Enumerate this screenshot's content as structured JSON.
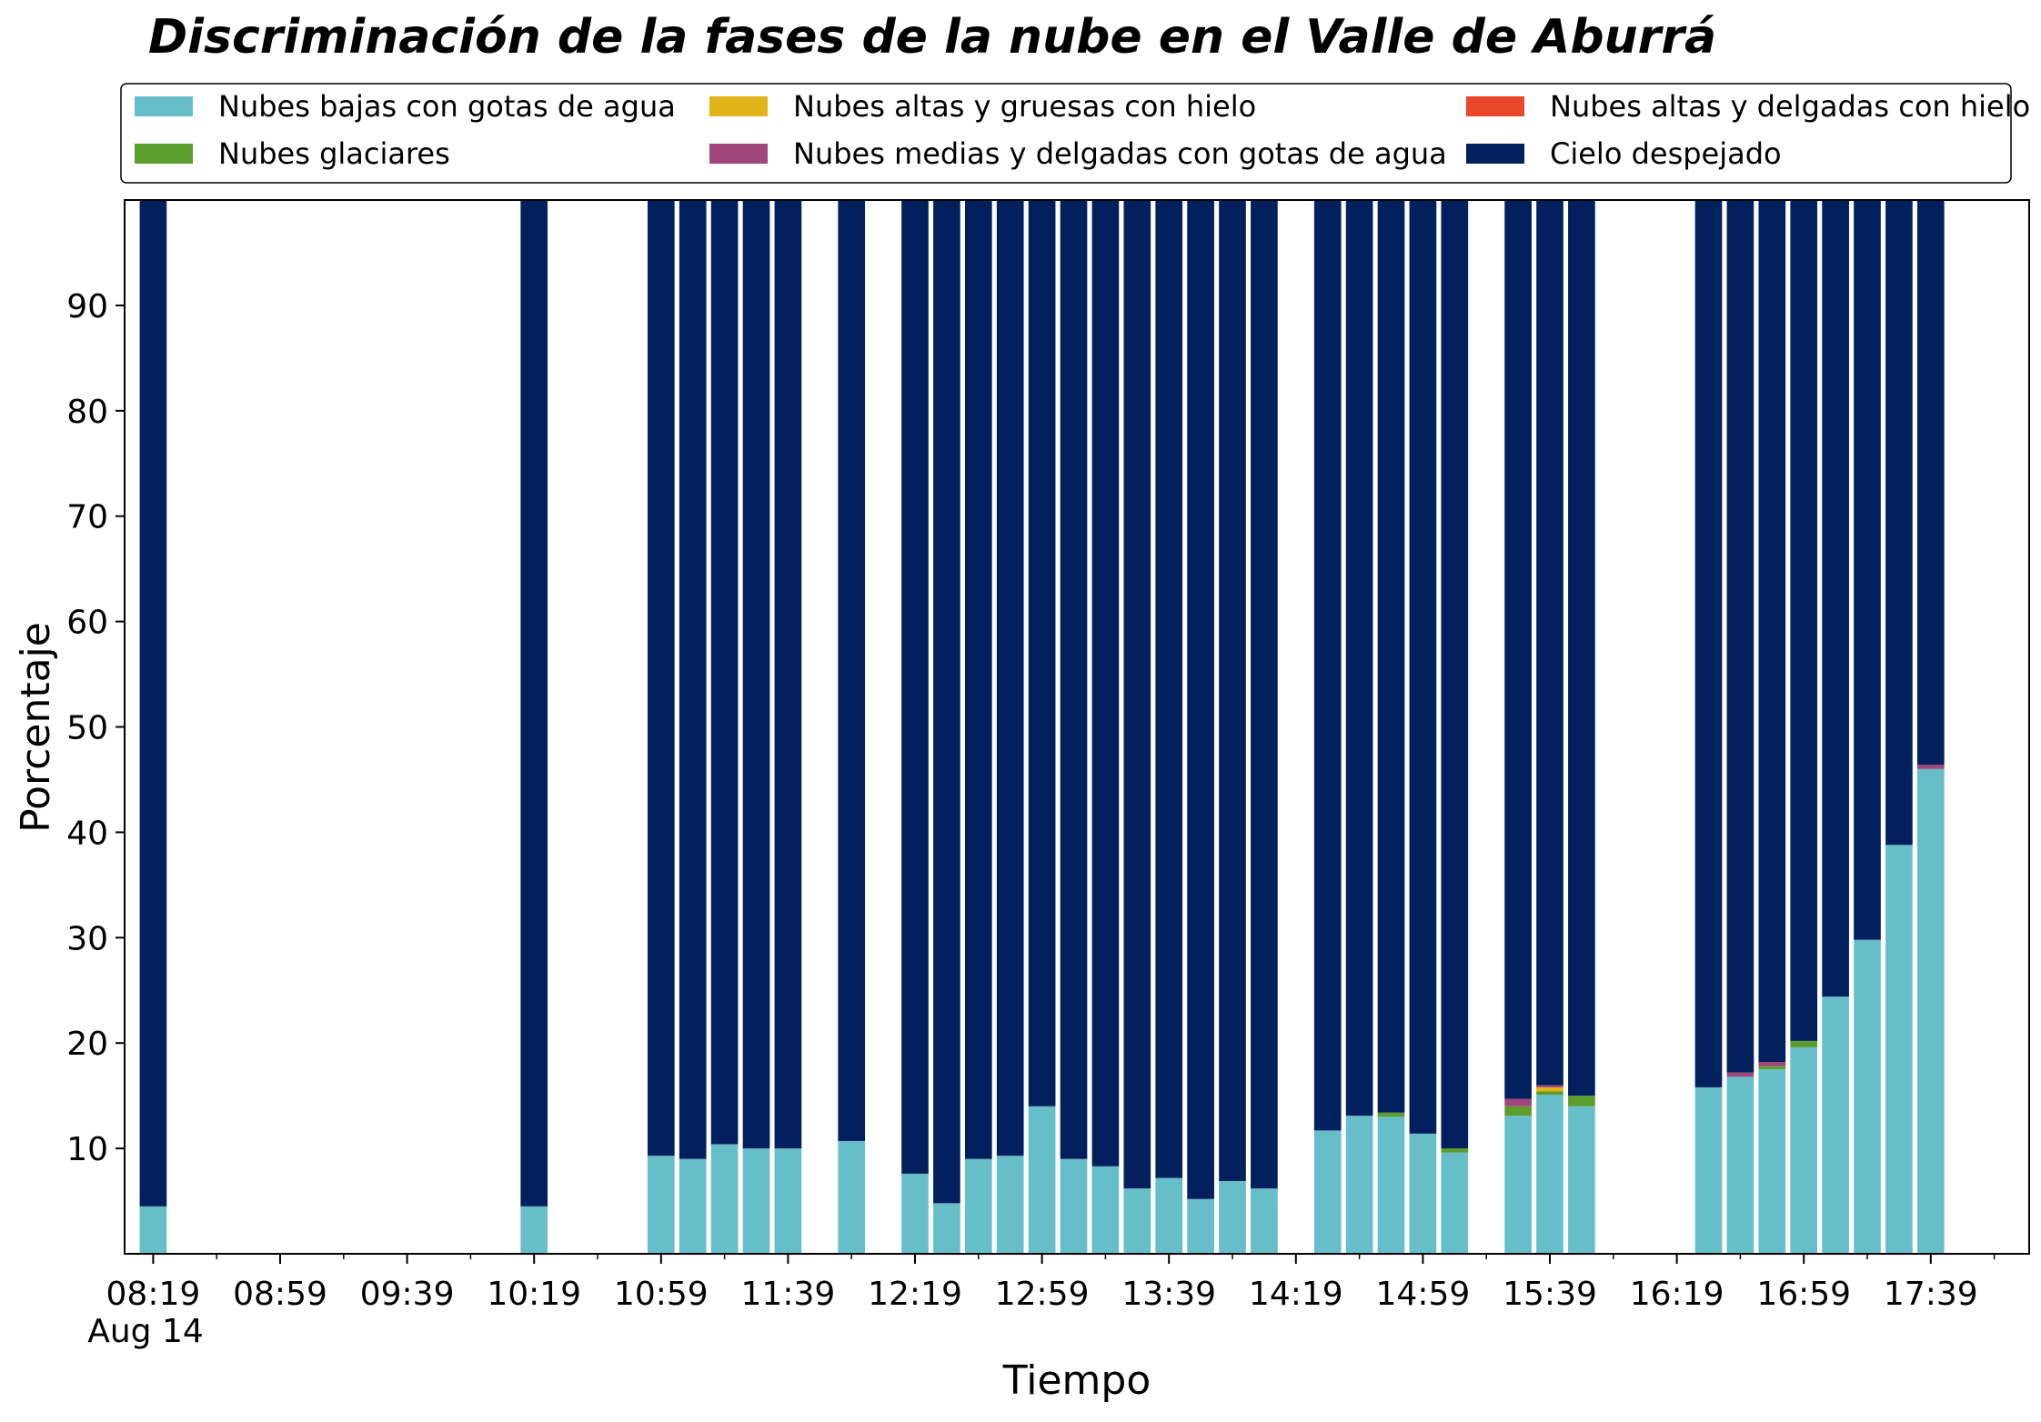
{
  "chart_data": {
    "type": "bar",
    "stacked": true,
    "title": "Discriminación de la fases de la nube en el Valle de Aburrá",
    "xlabel": "Tiempo",
    "ylabel": "Porcentaje",
    "ylim": [
      0,
      100
    ],
    "yticks": [
      10,
      20,
      30,
      40,
      50,
      60,
      70,
      80,
      90
    ],
    "xlim": [
      "08:10",
      "18:10"
    ],
    "x_tick_labels": [
      "08:19",
      "08:59",
      "09:39",
      "10:19",
      "10:59",
      "11:39",
      "12:19",
      "12:59",
      "13:39",
      "14:19",
      "14:59",
      "15:39",
      "16:19",
      "16:59",
      "17:39"
    ],
    "x_date_label": "Aug 14",
    "x_minor_step_minutes": 20,
    "grid": false,
    "legend_position": "top",
    "bar_width_minutes": 8.5,
    "x": [
      "08:19",
      "10:19",
      "10:59",
      "11:09",
      "11:19",
      "11:29",
      "11:39",
      "11:59",
      "12:19",
      "12:29",
      "12:39",
      "12:49",
      "12:59",
      "13:09",
      "13:19",
      "13:29",
      "13:39",
      "13:49",
      "13:59",
      "14:09",
      "14:29",
      "14:39",
      "14:49",
      "14:59",
      "15:09",
      "15:29",
      "15:39",
      "15:49",
      "16:29",
      "16:39",
      "16:49",
      "16:59",
      "17:09",
      "17:19",
      "17:29",
      "17:39"
    ],
    "series": [
      {
        "name": "Nubes bajas con gotas de agua",
        "color": "#66bec9",
        "values": [
          4.5,
          4.5,
          9.3,
          9.0,
          10.4,
          10.0,
          10.0,
          10.7,
          7.6,
          4.8,
          9.0,
          9.3,
          14.0,
          9.0,
          8.3,
          6.2,
          7.2,
          5.2,
          6.9,
          6.2,
          11.7,
          13.1,
          13.0,
          11.4,
          9.6,
          13.1,
          15.1,
          14.0,
          15.8,
          16.8,
          17.5,
          19.6,
          24.4,
          29.8,
          38.8,
          46.0
        ]
      },
      {
        "name": "Nubes glaciares",
        "color": "#5c9e2e",
        "values": [
          0,
          0,
          0,
          0,
          0,
          0,
          0,
          0,
          0,
          0,
          0,
          0,
          0,
          0,
          0,
          0,
          0,
          0,
          0,
          0,
          0,
          0,
          0.4,
          0,
          0.4,
          0.9,
          0.3,
          1.0,
          0,
          0,
          0.3,
          0.6,
          0,
          0,
          0,
          0
        ]
      },
      {
        "name": "Nubes altas y gruesas con hielo",
        "color": "#e0b416",
        "values": [
          0,
          0,
          0,
          0,
          0,
          0,
          0,
          0,
          0,
          0,
          0,
          0,
          0,
          0,
          0,
          0,
          0,
          0,
          0,
          0,
          0,
          0,
          0,
          0,
          0,
          0,
          0.4,
          0,
          0,
          0,
          0,
          0,
          0,
          0,
          0,
          0
        ]
      },
      {
        "name": "Nubes medias y delgadas con gotas de agua",
        "color": "#a0467a",
        "values": [
          0,
          0,
          0,
          0,
          0,
          0,
          0,
          0,
          0,
          0,
          0,
          0,
          0,
          0,
          0,
          0,
          0,
          0,
          0,
          0,
          0,
          0,
          0,
          0,
          0,
          0.7,
          0.2,
          0,
          0,
          0.4,
          0.4,
          0,
          0,
          0,
          0,
          0.4
        ]
      },
      {
        "name": "Nubes altas y delgadas con hielo",
        "color": "#e8472a",
        "values": [
          0,
          0,
          0,
          0,
          0,
          0,
          0,
          0,
          0,
          0,
          0,
          0,
          0,
          0,
          0,
          0,
          0,
          0,
          0,
          0,
          0,
          0,
          0,
          0,
          0,
          0,
          0,
          0,
          0,
          0,
          0,
          0,
          0,
          0,
          0,
          0
        ]
      },
      {
        "name": "Cielo despejado",
        "color": "#03205e",
        "values": [
          95.5,
          95.5,
          90.7,
          91.0,
          89.6,
          90.0,
          90.0,
          89.3,
          92.4,
          95.2,
          91.0,
          90.7,
          86.0,
          91.0,
          91.7,
          93.8,
          92.8,
          94.8,
          93.1,
          93.8,
          88.3,
          86.9,
          86.6,
          88.6,
          90.0,
          85.3,
          84.0,
          85.0,
          84.2,
          82.8,
          81.8,
          79.8,
          75.6,
          70.2,
          61.2,
          53.6
        ]
      }
    ]
  }
}
